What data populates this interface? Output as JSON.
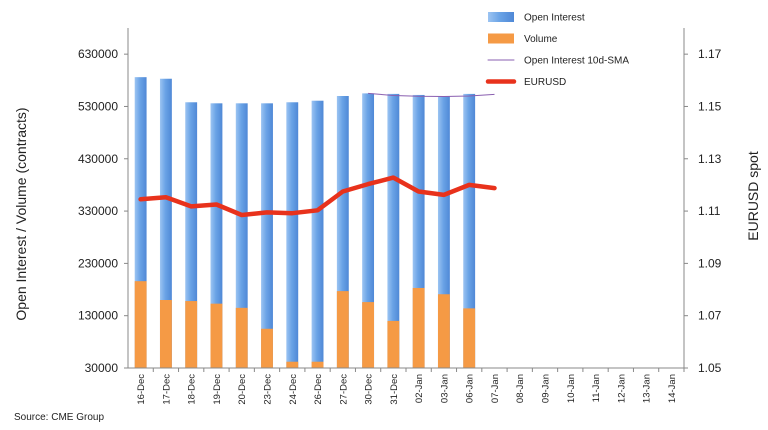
{
  "chart_data": {
    "type": "bar",
    "categories": [
      "16-Dec",
      "17-Dec",
      "18-Dec",
      "19-Dec",
      "20-Dec",
      "23-Dec",
      "24-Dec",
      "26-Dec",
      "27-Dec",
      "30-Dec",
      "31-Dec",
      "02-Jan",
      "03-Jan",
      "06-Jan",
      "07-Jan",
      "08-Jan",
      "09-Jan",
      "10-Jan",
      "11-Jan",
      "12-Jan",
      "13-Jan",
      "14-Jan"
    ],
    "series": [
      {
        "name": "Open Interest",
        "type": "bar",
        "axis": "left",
        "color": "#6aa3e6",
        "values": [
          586000,
          583000,
          538000,
          536000,
          536000,
          536000,
          538000,
          541000,
          550000,
          555000,
          554000,
          552000,
          549000,
          554000,
          null,
          null,
          null,
          null,
          null,
          null,
          null,
          null
        ]
      },
      {
        "name": "Volume",
        "type": "bar",
        "axis": "left",
        "color": "#f59a45",
        "values": [
          196000,
          160000,
          158000,
          153000,
          145000,
          105000,
          42000,
          42000,
          177000,
          156000,
          120000,
          183000,
          171000,
          144000,
          null,
          null,
          null,
          null,
          null,
          null,
          null,
          null
        ]
      },
      {
        "name": "Open Interest 10d-SMA",
        "type": "line",
        "axis": "left",
        "color": "#8a5fb0",
        "values": [
          null,
          null,
          null,
          null,
          null,
          null,
          null,
          null,
          null,
          555000,
          551000,
          549500,
          549000,
          550000,
          553000,
          null,
          null,
          null,
          null,
          null,
          null,
          null
        ]
      },
      {
        "name": "EURUSD",
        "type": "line",
        "axis": "right",
        "color": "#e8321c",
        "values": [
          1.1145,
          1.1153,
          1.1118,
          1.1125,
          1.1085,
          1.1095,
          1.1092,
          1.1103,
          1.1175,
          1.1203,
          1.1228,
          1.1175,
          1.1162,
          1.12,
          1.1188,
          null,
          null,
          null,
          null,
          null,
          null,
          null
        ]
      }
    ],
    "ylabel": "Open Interest / Volume (contracts)",
    "y2label": "EURUSD spot",
    "ylim": [
      30000,
      680000
    ],
    "y2lim": [
      1.05,
      1.18
    ],
    "yticks": [
      "630000",
      "530000",
      "430000",
      "330000",
      "230000",
      "130000",
      "30000"
    ],
    "y2ticks": [
      "1.17",
      "1.15",
      "1.13",
      "1.11",
      "1.09",
      "1.07",
      "1.05"
    ],
    "legend": {
      "position": "top-right",
      "entries": [
        "Open Interest",
        "Volume",
        "Open Interest 10d-SMA",
        "EURUSD"
      ]
    },
    "grid": false,
    "source": "Source: CME Group"
  }
}
